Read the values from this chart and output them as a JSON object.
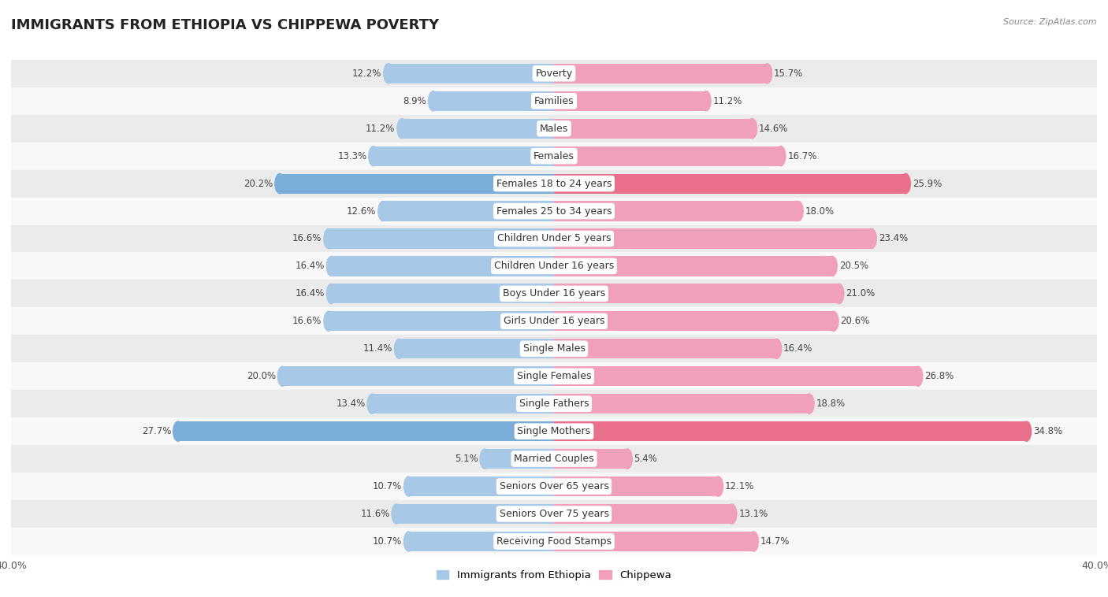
{
  "title": "IMMIGRANTS FROM ETHIOPIA VS CHIPPEWA POVERTY",
  "source": "Source: ZipAtlas.com",
  "categories": [
    "Poverty",
    "Families",
    "Males",
    "Females",
    "Females 18 to 24 years",
    "Females 25 to 34 years",
    "Children Under 5 years",
    "Children Under 16 years",
    "Boys Under 16 years",
    "Girls Under 16 years",
    "Single Males",
    "Single Females",
    "Single Fathers",
    "Single Mothers",
    "Married Couples",
    "Seniors Over 65 years",
    "Seniors Over 75 years",
    "Receiving Food Stamps"
  ],
  "ethiopia_values": [
    12.2,
    8.9,
    11.2,
    13.3,
    20.2,
    12.6,
    16.6,
    16.4,
    16.4,
    16.6,
    11.4,
    20.0,
    13.4,
    27.7,
    5.1,
    10.7,
    11.6,
    10.7
  ],
  "chippewa_values": [
    15.7,
    11.2,
    14.6,
    16.7,
    25.9,
    18.0,
    23.4,
    20.5,
    21.0,
    20.6,
    16.4,
    26.8,
    18.8,
    34.8,
    5.4,
    12.1,
    13.1,
    14.7
  ],
  "ethiopia_color": "#a8c8e8",
  "chippewa_color": "#f0a0b8",
  "ethiopia_highlight_color": "#7aaed8",
  "chippewa_highlight_color": "#e8708a",
  "highlight_rows": [
    4,
    13
  ],
  "xlim": 40.0,
  "bar_height": 0.72,
  "bg_color_odd": "#ebebeb",
  "bg_color_even": "#f8f8f8",
  "legend_ethiopia": "Immigrants from Ethiopia",
  "legend_chippewa": "Chippewa",
  "title_fontsize": 13,
  "label_fontsize": 9,
  "value_fontsize": 8.5,
  "axis_fontsize": 9
}
